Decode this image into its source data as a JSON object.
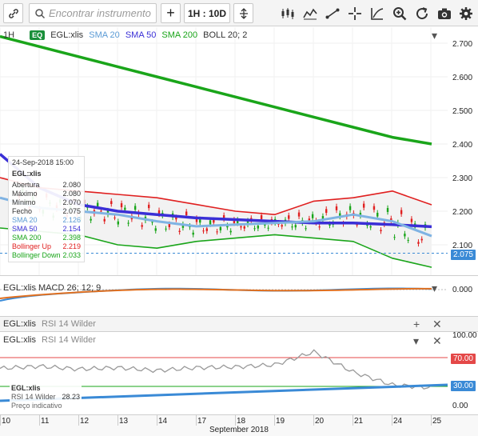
{
  "toolbar": {
    "search_placeholder": "Encontrar instrumento",
    "add_label": "+",
    "period_label": "1H : 10D",
    "icons": [
      "link-icon",
      "add-icon",
      "compare-icon",
      "candle-type-icon",
      "line-type-icon",
      "trend-line-icon",
      "crosshair-icon",
      "draw-icon",
      "zoom-in-icon",
      "zoom-out-icon",
      "reset-icon",
      "camera-icon",
      "settings-icon"
    ]
  },
  "main_chart": {
    "timeframe": "1H",
    "badge": "EQ",
    "symbol": "EGL:xlis",
    "indicators": [
      {
        "label": "SMA 20",
        "color": "#5b9bd5"
      },
      {
        "label": "SMA 50",
        "color": "#3a2fd6"
      },
      {
        "label": "SMA 200",
        "color": "#1aa51a"
      },
      {
        "label": "BOLL 20; 2",
        "color": "#333333"
      }
    ],
    "y_ticks": [
      "2.700",
      "2.600",
      "2.500",
      "2.400",
      "2.300",
      "2.200",
      "2.100"
    ],
    "last_price": "2.075",
    "last_price_color": "#3a8ad6"
  },
  "tooltip": {
    "datetime": "24-Sep-2018 15:00",
    "name": "EGL:xlis",
    "rows": [
      {
        "label": "Abertura",
        "value": "2.080",
        "color": "#333333"
      },
      {
        "label": "Máximo",
        "value": "2.080",
        "color": "#333333"
      },
      {
        "label": "Mínimo",
        "value": "2.070",
        "color": "#333333"
      },
      {
        "label": "Fecho",
        "value": "2.075",
        "color": "#333333"
      },
      {
        "label": "SMA 20",
        "value": "2.126",
        "color": "#5b9bd5"
      },
      {
        "label": "SMA 50",
        "value": "2.154",
        "color": "#3a2fd6"
      },
      {
        "label": "SMA 200",
        "value": "2.398",
        "color": "#1aa51a"
      },
      {
        "label": "Bollinger Up",
        "value": "2.219",
        "color": "#e02020"
      },
      {
        "label": "Bollinger Down",
        "value": "2.033",
        "color": "#1aa51a"
      }
    ]
  },
  "macd": {
    "label": "EGL:xlis  MACD 26; 12; 9",
    "y_tick": "0.000"
  },
  "rsi_header": {
    "symbol": "EGL:xlis",
    "label": "RSI 14 Wilder"
  },
  "rsi": {
    "symbol": "EGL:xlis",
    "label": "RSI 14 Wilder",
    "y_ticks": [
      "100.00",
      "70.00",
      "30.00",
      "0.00"
    ],
    "tag_70": "70.00",
    "tag_30": "30.00",
    "info_name": "EGL:xlis",
    "info_label": "RSI 14 Wilder",
    "info_value": "28.23",
    "info_note": "Preço indicativo"
  },
  "x_axis": {
    "days": [
      "10",
      "11",
      "12",
      "13",
      "14",
      "17",
      "18",
      "19",
      "20",
      "21",
      "24",
      "25"
    ],
    "month": "September 2018"
  },
  "chart_data": [
    {
      "type": "line",
      "title": "",
      "x": [
        "10",
        "11",
        "12",
        "13",
        "14",
        "17",
        "18",
        "19",
        "20",
        "21",
        "24",
        "25"
      ],
      "series": [
        {
          "name": "SMA 200",
          "values": [
            2.72,
            2.69,
            2.66,
            2.63,
            2.6,
            2.57,
            2.54,
            2.51,
            2.48,
            2.45,
            2.42,
            2.4
          ]
        },
        {
          "name": "SMA 50",
          "values": [
            2.37,
            2.27,
            2.22,
            2.2,
            2.19,
            2.18,
            2.175,
            2.17,
            2.165,
            2.165,
            2.16,
            2.154
          ]
        },
        {
          "name": "SMA 20",
          "values": [
            2.24,
            2.21,
            2.2,
            2.19,
            2.17,
            2.155,
            2.16,
            2.165,
            2.17,
            2.19,
            2.17,
            2.126
          ]
        },
        {
          "name": "Bollinger Up",
          "values": [
            2.3,
            2.27,
            2.26,
            2.25,
            2.24,
            2.22,
            2.2,
            2.19,
            2.23,
            2.24,
            2.26,
            2.219
          ]
        },
        {
          "name": "Bollinger Down",
          "values": [
            2.15,
            2.14,
            2.13,
            2.1,
            2.09,
            2.11,
            2.12,
            2.13,
            2.12,
            2.11,
            2.06,
            2.033
          ]
        }
      ],
      "ylim": [
        2.05,
        2.73
      ]
    },
    {
      "type": "line",
      "title": "",
      "series": [
        {
          "name": "RSI 14 Wilder",
          "values": [
            55,
            58,
            54,
            56,
            52,
            56,
            57,
            60,
            78,
            50,
            32,
            28.23
          ]
        }
      ],
      "ylim": [
        0,
        100
      ]
    }
  ]
}
